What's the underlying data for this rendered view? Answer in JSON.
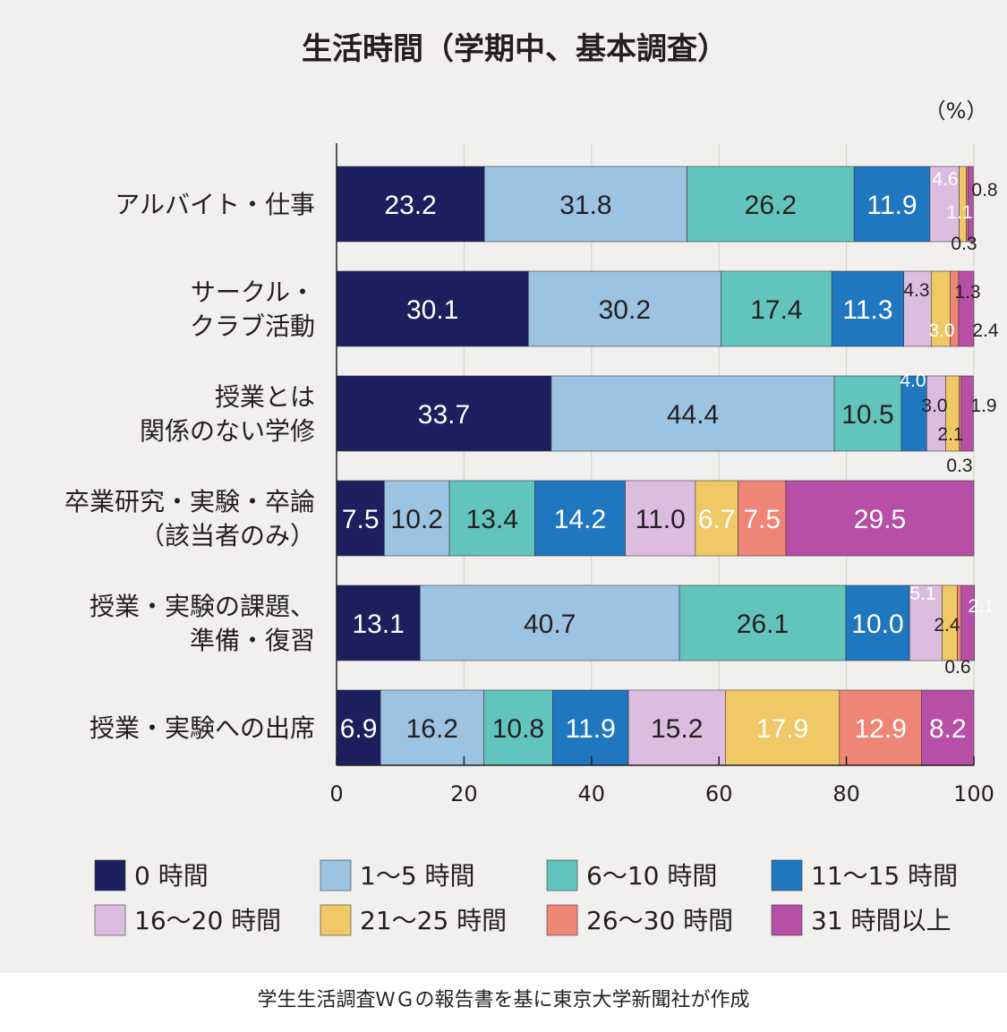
{
  "chart_data": {
    "type": "bar",
    "orientation": "horizontal",
    "stacked": true,
    "title": "生活時間（学期中、基本調査）",
    "unit": "（%）",
    "xlim": [
      0,
      100
    ],
    "x_ticks": [
      0,
      20,
      40,
      60,
      80,
      100
    ],
    "grid": true,
    "legend_position": "bottom",
    "categories": [
      [
        "アルバイト・仕事"
      ],
      [
        "サークル・",
        "クラブ活動"
      ],
      [
        "授業とは",
        "関係のない学修"
      ],
      [
        "卒業研究・実験・卒論",
        "（該当者のみ）"
      ],
      [
        "授業・実験の課題、",
        "準備・復習"
      ],
      [
        "授業・実験への出席"
      ]
    ],
    "series": [
      {
        "name": "0 時間",
        "color": "#1b1f5e",
        "values": [
          23.2,
          30.1,
          33.7,
          7.5,
          13.1,
          6.9
        ]
      },
      {
        "name": "1〜5 時間",
        "color": "#9dc3e2",
        "values": [
          31.8,
          30.2,
          44.4,
          10.2,
          40.7,
          16.2
        ]
      },
      {
        "name": "6〜10 時間",
        "color": "#62c5bd",
        "values": [
          26.2,
          17.4,
          10.5,
          13.4,
          26.1,
          10.8
        ]
      },
      {
        "name": "11〜15 時間",
        "color": "#1f77bf",
        "values": [
          11.9,
          11.3,
          4.0,
          14.2,
          10.0,
          11.9
        ]
      },
      {
        "name": "16〜20 時間",
        "color": "#dcbde0",
        "values": [
          4.6,
          4.3,
          3.0,
          11.0,
          5.1,
          15.2
        ]
      },
      {
        "name": "21〜25 時間",
        "color": "#f0c865",
        "values": [
          1.1,
          3.0,
          2.1,
          6.7,
          2.4,
          17.9
        ]
      },
      {
        "name": "26〜30 時間",
        "color": "#ee8577",
        "values": [
          0.3,
          1.3,
          0.3,
          7.5,
          0.6,
          12.9
        ]
      },
      {
        "name": "31 時間以上",
        "color": "#b64fa5",
        "values": [
          0.8,
          2.4,
          1.9,
          29.5,
          2.1,
          8.2
        ]
      }
    ]
  },
  "source_note": "学生生活調査ＷＧの報告書を基に東京大学新聞社が作成"
}
